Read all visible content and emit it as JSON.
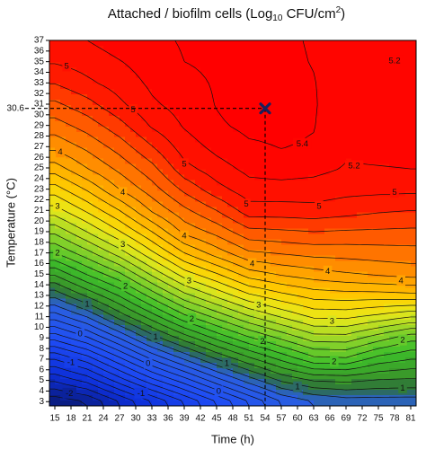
{
  "chart_data": {
    "type": "contour",
    "title": {
      "main": "Attached / biofilm cells (Log",
      "sub": "10",
      "unit": " CFU/cm",
      "sup": "2",
      "close": ")"
    },
    "x_label": "Time (h)",
    "y_label": "Temperature (°C)",
    "xlim": [
      14,
      82
    ],
    "ylim": [
      2.6,
      37
    ],
    "xticks": [
      15,
      18,
      21,
      24,
      27,
      30,
      33,
      36,
      39,
      42,
      45,
      48,
      51,
      54,
      57,
      60,
      63,
      66,
      69,
      72,
      75,
      78,
      81
    ],
    "yticks": [
      3,
      4,
      5,
      6,
      7,
      8,
      9,
      10,
      11,
      12,
      13,
      14,
      15,
      16,
      17,
      18,
      19,
      20,
      21,
      22,
      23,
      24,
      25,
      26,
      27,
      28,
      29,
      30,
      31,
      32,
      33,
      34,
      35,
      36,
      37
    ],
    "zx": [
      15,
      21,
      27,
      33,
      39,
      45,
      51,
      57,
      63,
      69,
      75,
      81
    ],
    "zy": [
      3,
      5,
      7,
      9,
      11,
      13,
      15,
      17,
      19,
      21,
      23,
      25,
      27,
      29,
      31,
      33,
      35,
      37
    ],
    "z": [
      [
        -2.14,
        -2,
        -1.6,
        -1.2,
        -0.8,
        -0.4,
        0,
        0.4,
        0.6,
        0.7,
        0.7,
        0.7
      ],
      [
        -1.57,
        -1.33,
        -0.9,
        -0.47,
        -0.1,
        0.31,
        0.69,
        1.03,
        1.21,
        1.24,
        1.18,
        1.16
      ],
      [
        -1,
        -0.71,
        -0.26,
        0.21,
        0.61,
        1,
        1.34,
        1.64,
        1.93,
        1.96,
        1.71,
        1.6
      ],
      [
        -0.33,
        -0.03,
        0.41,
        0.9,
        1.29,
        1.65,
        1.97,
        2.24,
        2.5,
        2.51,
        2.29,
        2.07
      ],
      [
        0.29,
        0.61,
        1.08,
        1.5,
        1.94,
        2.26,
        2.58,
        2.82,
        3.04,
        3.05,
        2.94,
        2.81
      ],
      [
        0.86,
        1.24,
        1.62,
        2.08,
        2.53,
        2.85,
        3.16,
        3.34,
        3.48,
        3.51,
        3.51,
        3.54
      ],
      [
        1.43,
        1.82,
        2.16,
        2.64,
        3.1,
        3.38,
        3.7,
        3.83,
        3.91,
        3.98,
        4.04,
        4.08
      ],
      [
        2,
        2.33,
        2.7,
        3.16,
        3.6,
        3.9,
        4.17,
        4.22,
        4.27,
        4.28,
        4.3,
        4.32
      ],
      [
        2.45,
        2.81,
        3.19,
        3.6,
        4.06,
        4.27,
        4.54,
        4.57,
        4.6,
        4.58,
        4.57,
        4.56
      ],
      [
        2.91,
        3.24,
        3.6,
        4.03,
        4.35,
        4.6,
        4.91,
        4.91,
        4.93,
        4.88,
        4.83,
        4.8
      ],
      [
        3.31,
        3.63,
        4.01,
        4.31,
        4.65,
        4.93,
        5.12,
        5.13,
        5.12,
        5.07,
        5.06,
        5.05
      ],
      [
        3.71,
        4.01,
        4.26,
        4.54,
        4.94,
        5.12,
        5.26,
        5.29,
        5.26,
        5.19,
        5.2,
        5.21
      ],
      [
        4.06,
        4.25,
        4.49,
        4.79,
        5.1,
        5.26,
        5.37,
        5.41,
        5.38,
        5.22,
        5.22,
        5.22
      ],
      [
        4.31,
        4.49,
        4.73,
        5.03,
        5.22,
        5.37,
        5.45,
        5.44,
        5.41,
        5.23,
        5.24,
        5.24
      ],
      [
        4.56,
        4.73,
        4.96,
        5.17,
        5.28,
        5.41,
        5.5,
        5.48,
        5.42,
        5.25,
        5.25,
        5.25
      ],
      [
        4.81,
        4.96,
        5.09,
        5.24,
        5.34,
        5.42,
        5.48,
        5.47,
        5.41,
        5.27,
        5.27,
        5.27
      ],
      [
        5.02,
        5.09,
        5.19,
        5.3,
        5.4,
        5.44,
        5.47,
        5.45,
        5.39,
        5.28,
        5.29,
        5.28
      ],
      [
        5.1,
        5.2,
        5.3,
        5.35,
        5.42,
        5.45,
        5.45,
        5.44,
        5.38,
        5.3,
        5.3,
        5.3
      ]
    ],
    "contour_levels": [
      -2,
      -1.8,
      -1.6,
      -1.4,
      -1.2,
      -1,
      -0.8,
      -0.6,
      -0.4,
      -0.2,
      0,
      0.2,
      0.4,
      0.6,
      0.8,
      1,
      1.2,
      1.4,
      1.6,
      1.8,
      2,
      2.2,
      2.4,
      2.6,
      2.8,
      3,
      3.2,
      3.4,
      3.6,
      3.8,
      4,
      4.2,
      4.4,
      4.6,
      4.8,
      5,
      5.2,
      5.4
    ],
    "colorscale": [
      {
        "value": -2.2,
        "color": "#0a1a78"
      },
      {
        "value": -1.4,
        "color": "#0d2fd8"
      },
      {
        "value": -0.4,
        "color": "#1f4cf5"
      },
      {
        "value": 0.6,
        "color": "#2a5fe0"
      },
      {
        "value": 1.0,
        "color": "#2d6e3c"
      },
      {
        "value": 1.3,
        "color": "#3a9a2a"
      },
      {
        "value": 1.8,
        "color": "#3dbe2a"
      },
      {
        "value": 2.4,
        "color": "#8ed42a"
      },
      {
        "value": 3.0,
        "color": "#e8e81a"
      },
      {
        "value": 3.4,
        "color": "#ffd000"
      },
      {
        "value": 4.0,
        "color": "#ff9a00"
      },
      {
        "value": 4.5,
        "color": "#ff5a00"
      },
      {
        "value": 4.9,
        "color": "#ff1a00"
      },
      {
        "value": 5.4,
        "color": "#ff0000"
      }
    ],
    "contour_labels": [
      {
        "x": 17.2,
        "y": 34.6,
        "level": 5
      },
      {
        "x": 29.5,
        "y": 30.5,
        "level": 5
      },
      {
        "x": 39,
        "y": 25.4,
        "level": 5
      },
      {
        "x": 50.5,
        "y": 21.6,
        "level": 5
      },
      {
        "x": 64,
        "y": 21.4,
        "level": 5
      },
      {
        "x": 78,
        "y": 22.7,
        "level": 5
      },
      {
        "x": 60.9,
        "y": 27.3,
        "level": 5.4
      },
      {
        "x": 70.5,
        "y": 25.2,
        "level": 5.2
      },
      {
        "x": 78,
        "y": 35.1,
        "level": 5.2
      },
      {
        "x": 16,
        "y": 26.5,
        "level": 4
      },
      {
        "x": 27.6,
        "y": 22.7,
        "level": 4
      },
      {
        "x": 39,
        "y": 18.6,
        "level": 4
      },
      {
        "x": 51.6,
        "y": 16,
        "level": 4
      },
      {
        "x": 65.6,
        "y": 15.3,
        "level": 4
      },
      {
        "x": 79.2,
        "y": 14.4,
        "level": 4
      },
      {
        "x": 15.5,
        "y": 21.4,
        "level": 3
      },
      {
        "x": 27.6,
        "y": 17.8,
        "level": 3
      },
      {
        "x": 39.9,
        "y": 14.4,
        "level": 3
      },
      {
        "x": 52.8,
        "y": 12.1,
        "level": 3
      },
      {
        "x": 66.4,
        "y": 10.6,
        "level": 3
      },
      {
        "x": 15.5,
        "y": 17,
        "level": 2
      },
      {
        "x": 28.1,
        "y": 13.9,
        "level": 2
      },
      {
        "x": 40.4,
        "y": 10.8,
        "level": 2
      },
      {
        "x": 53.5,
        "y": 8.7,
        "level": 2
      },
      {
        "x": 66.8,
        "y": 6.8,
        "level": 2
      },
      {
        "x": 79.5,
        "y": 8.8,
        "level": 2
      },
      {
        "x": 21,
        "y": 12.2,
        "level": 1
      },
      {
        "x": 33.7,
        "y": 9.1,
        "level": 1
      },
      {
        "x": 46.9,
        "y": 6.6,
        "level": 1
      },
      {
        "x": 60,
        "y": 4.4,
        "level": 1
      },
      {
        "x": 79.5,
        "y": 4.3,
        "level": 1
      },
      {
        "x": 19.7,
        "y": 9.4,
        "level": 0
      },
      {
        "x": 32.3,
        "y": 6.6,
        "level": 0
      },
      {
        "x": 45.4,
        "y": 4,
        "level": 0
      },
      {
        "x": 18,
        "y": 6.7,
        "level": -1
      },
      {
        "x": 31,
        "y": 3.8,
        "level": -1
      },
      {
        "x": 17.7,
        "y": 3.8,
        "level": -2
      }
    ],
    "marker": {
      "x": 54,
      "y": 30.6,
      "color": "#1a1f5c"
    }
  }
}
